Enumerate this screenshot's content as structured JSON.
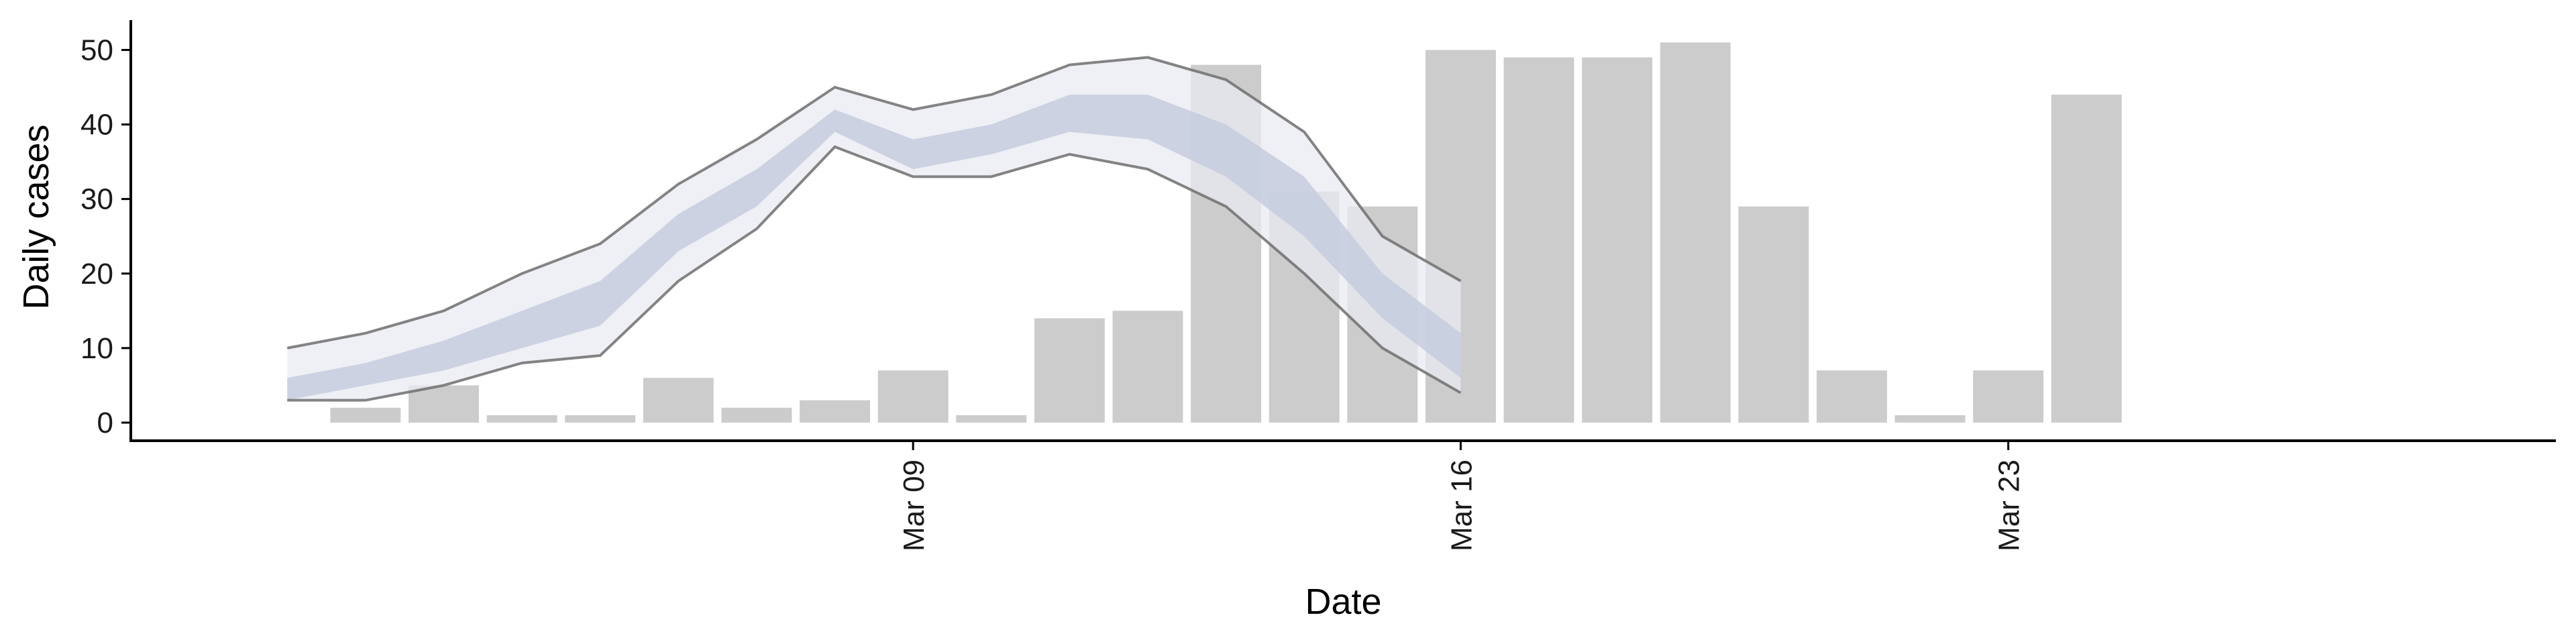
{
  "chart_data": {
    "type": "bar",
    "xlabel": "Date",
    "ylabel": "Daily cases",
    "ylim": [
      0,
      54
    ],
    "yticks": [
      0,
      10,
      20,
      30,
      40,
      50
    ],
    "x_range": [
      "2020-02-28",
      "2020-03-30"
    ],
    "xticks": [
      {
        "date": "2020-03-09",
        "label": "Mar 09"
      },
      {
        "date": "2020-03-16",
        "label": "Mar 16"
      },
      {
        "date": "2020-03-23",
        "label": "Mar 23"
      }
    ],
    "grid": false,
    "legend": "none",
    "bar_color": "#cccccc",
    "band_outer_color": "#e9ebf2",
    "band_inner_color": "#c3cadd",
    "band_line_color": "#6e6e6e",
    "bars": [
      {
        "date": "2020-03-02",
        "value": 2
      },
      {
        "date": "2020-03-03",
        "value": 5
      },
      {
        "date": "2020-03-04",
        "value": 1
      },
      {
        "date": "2020-03-05",
        "value": 1
      },
      {
        "date": "2020-03-06",
        "value": 6
      },
      {
        "date": "2020-03-07",
        "value": 2
      },
      {
        "date": "2020-03-08",
        "value": 3
      },
      {
        "date": "2020-03-09",
        "value": 7
      },
      {
        "date": "2020-03-10",
        "value": 1
      },
      {
        "date": "2020-03-11",
        "value": 14
      },
      {
        "date": "2020-03-12",
        "value": 15
      },
      {
        "date": "2020-03-13",
        "value": 48
      },
      {
        "date": "2020-03-14",
        "value": 31
      },
      {
        "date": "2020-03-15",
        "value": 29
      },
      {
        "date": "2020-03-16",
        "value": 50
      },
      {
        "date": "2020-03-17",
        "value": 49
      },
      {
        "date": "2020-03-18",
        "value": 49
      },
      {
        "date": "2020-03-19",
        "value": 51
      },
      {
        "date": "2020-03-20",
        "value": 29
      },
      {
        "date": "2020-03-21",
        "value": 7
      },
      {
        "date": "2020-03-22",
        "value": 1
      },
      {
        "date": "2020-03-23",
        "value": 7
      },
      {
        "date": "2020-03-24",
        "value": 44
      }
    ],
    "bands": {
      "dates": [
        "2020-03-01",
        "2020-03-02",
        "2020-03-03",
        "2020-03-04",
        "2020-03-05",
        "2020-03-06",
        "2020-03-07",
        "2020-03-08",
        "2020-03-09",
        "2020-03-10",
        "2020-03-11",
        "2020-03-12",
        "2020-03-13",
        "2020-03-14",
        "2020-03-15",
        "2020-03-16"
      ],
      "outer_upper": [
        10,
        12,
        15,
        20,
        24,
        32,
        38,
        45,
        42,
        44,
        48,
        49,
        46,
        39,
        25,
        19
      ],
      "outer_lower": [
        3,
        3,
        5,
        8,
        9,
        19,
        26,
        37,
        33,
        33,
        36,
        34,
        29,
        20,
        10,
        4
      ],
      "inner_upper": [
        6,
        8,
        11,
        15,
        19,
        28,
        34,
        42,
        38,
        40,
        44,
        44,
        40,
        33,
        20,
        12
      ],
      "inner_lower": [
        3,
        5,
        7,
        10,
        13,
        23,
        29,
        39,
        34,
        36,
        39,
        38,
        33,
        25,
        14,
        6
      ]
    }
  }
}
